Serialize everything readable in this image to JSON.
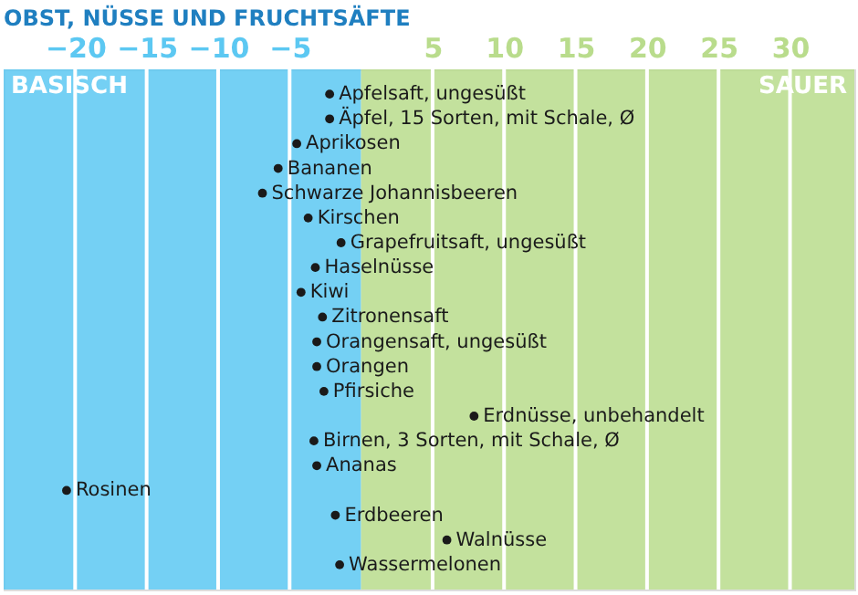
{
  "chart_data": {
    "type": "scatter",
    "orientation": "horizontal",
    "title": "OBST, NÜSSE UND FRUCHTSÄFTE",
    "categories": [
      "Apfelsaft, ungesüßt",
      "Äpfel, 15 Sorten, mit Schale, Ø",
      "Aprikosen",
      "Bananen",
      "Schwarze Johannisbeeren",
      "Kirschen",
      "Grapefruitsaft, ungesüßt",
      "Haselnüsse",
      "Kiwi",
      "Zitronensaft",
      "Orangensaft, ungesüßt",
      "Orangen",
      "Pfirsiche",
      "Erdnüsse, unbehandelt",
      "Birnen, 3 Sorten, mit Schale, Ø",
      "Ananas",
      "Rosinen",
      "Erdbeeren",
      "Walnüsse",
      "Wassermelonen"
    ],
    "series": [
      {
        "color": "#1a1a1a",
        "values": [
          -2.2,
          -2.2,
          -4.5,
          -5.8,
          -6.9,
          -3.7,
          -1.4,
          -3.2,
          -4.2,
          -2.7,
          -3.1,
          -3.1,
          -2.6,
          7.9,
          -3.3,
          -3.1,
          -20.6,
          -1.8,
          6.0,
          -1.5
        ]
      }
    ],
    "xlim": [
      -25,
      34.5
    ],
    "xticks": [
      -20,
      -15,
      -10,
      -5,
      5,
      10,
      15,
      20,
      25,
      30
    ],
    "bands": [
      {
        "axis": "x",
        "from": -25,
        "to": 0,
        "label": "BASISCH",
        "color": "#5cc8f2"
      },
      {
        "axis": "x",
        "from": 0,
        "to": 34.5,
        "label": "SAUER",
        "color": "#b9dc8c"
      }
    ],
    "grid": "x",
    "marker": "circle",
    "tick_labels": "x"
  }
}
